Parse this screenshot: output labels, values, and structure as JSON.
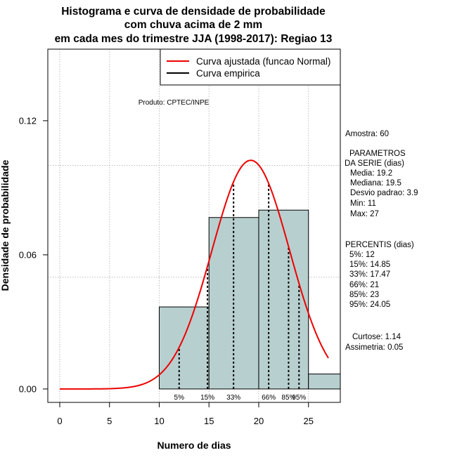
{
  "chart_data": {
    "type": "bar",
    "title_lines": [
      "Histograma e curva de densidade de probabilidade",
      "com chuva acima de 2 mm",
      "em cada mes do trimestre JJA (1998-2017): Regiao 13"
    ],
    "xlabel": "Numero de dias",
    "ylabel": "Densidade de probabilidade",
    "xlim": [
      -1.2,
      28.2
    ],
    "ylim": [
      -0.006,
      0.152
    ],
    "x_ticks": [
      0,
      5,
      10,
      15,
      20,
      25
    ],
    "x_tick_labels": [
      "0",
      "5",
      "10",
      "15",
      "20",
      "25"
    ],
    "y_ticks": [
      0.0,
      0.06,
      0.12
    ],
    "y_tick_labels": [
      "0.00",
      "0.06",
      "0.12"
    ],
    "grid_x": [
      0,
      5,
      10,
      15,
      20,
      25
    ],
    "grid_y": [
      0.05,
      0.1
    ],
    "bins": [
      {
        "from": 10,
        "to": 15,
        "value": 0.0367
      },
      {
        "from": 15,
        "to": 20,
        "value": 0.0767
      },
      {
        "from": 20,
        "to": 25,
        "value": 0.08
      },
      {
        "from": 25,
        "to": 28.2,
        "value": 0.0067
      }
    ],
    "bar_color": "#b8cfcf",
    "normal_curve": {
      "mean": 19.2,
      "sd": 3.9,
      "x_from": 0,
      "x_to": 27,
      "color": "#ee0000"
    },
    "percentile_lines": [
      {
        "label": "5%",
        "x": 12
      },
      {
        "label": "15%",
        "x": 14.85
      },
      {
        "label": "33%",
        "x": 17.47
      },
      {
        "label": "66%",
        "x": 21
      },
      {
        "label": "85%",
        "x": 23
      },
      {
        "label": "95%",
        "x": 24.05
      }
    ],
    "legend": [
      {
        "label": "Curva ajustada (funcao Normal)",
        "color": "#ee0000"
      },
      {
        "label": "Curva empirica",
        "color": "#000000"
      }
    ],
    "legend_position": "top-right",
    "credit": "Produto: CPTEC/INPE"
  },
  "stats": {
    "amostra": "Amostra: 60",
    "params_title_1": "PARAMETROS",
    "params_title_2": "DA SERIE (dias)",
    "media": "Media: 19.2",
    "mediana": "Mediana: 19.5",
    "desvio": "Desvio padrao: 3.9",
    "min": "Min: 11",
    "max": "Max: 27",
    "percentis_title": "PERCENTIS (dias)",
    "p5": "5%: 12",
    "p15": "15%: 14.85",
    "p33": "33%: 17.47",
    "p66": "66%: 21",
    "p85": "85%: 23",
    "p95": "95%: 24.05",
    "curtose": "Curtose: 1.14",
    "assimetria": "Assimetria: 0.05"
  }
}
